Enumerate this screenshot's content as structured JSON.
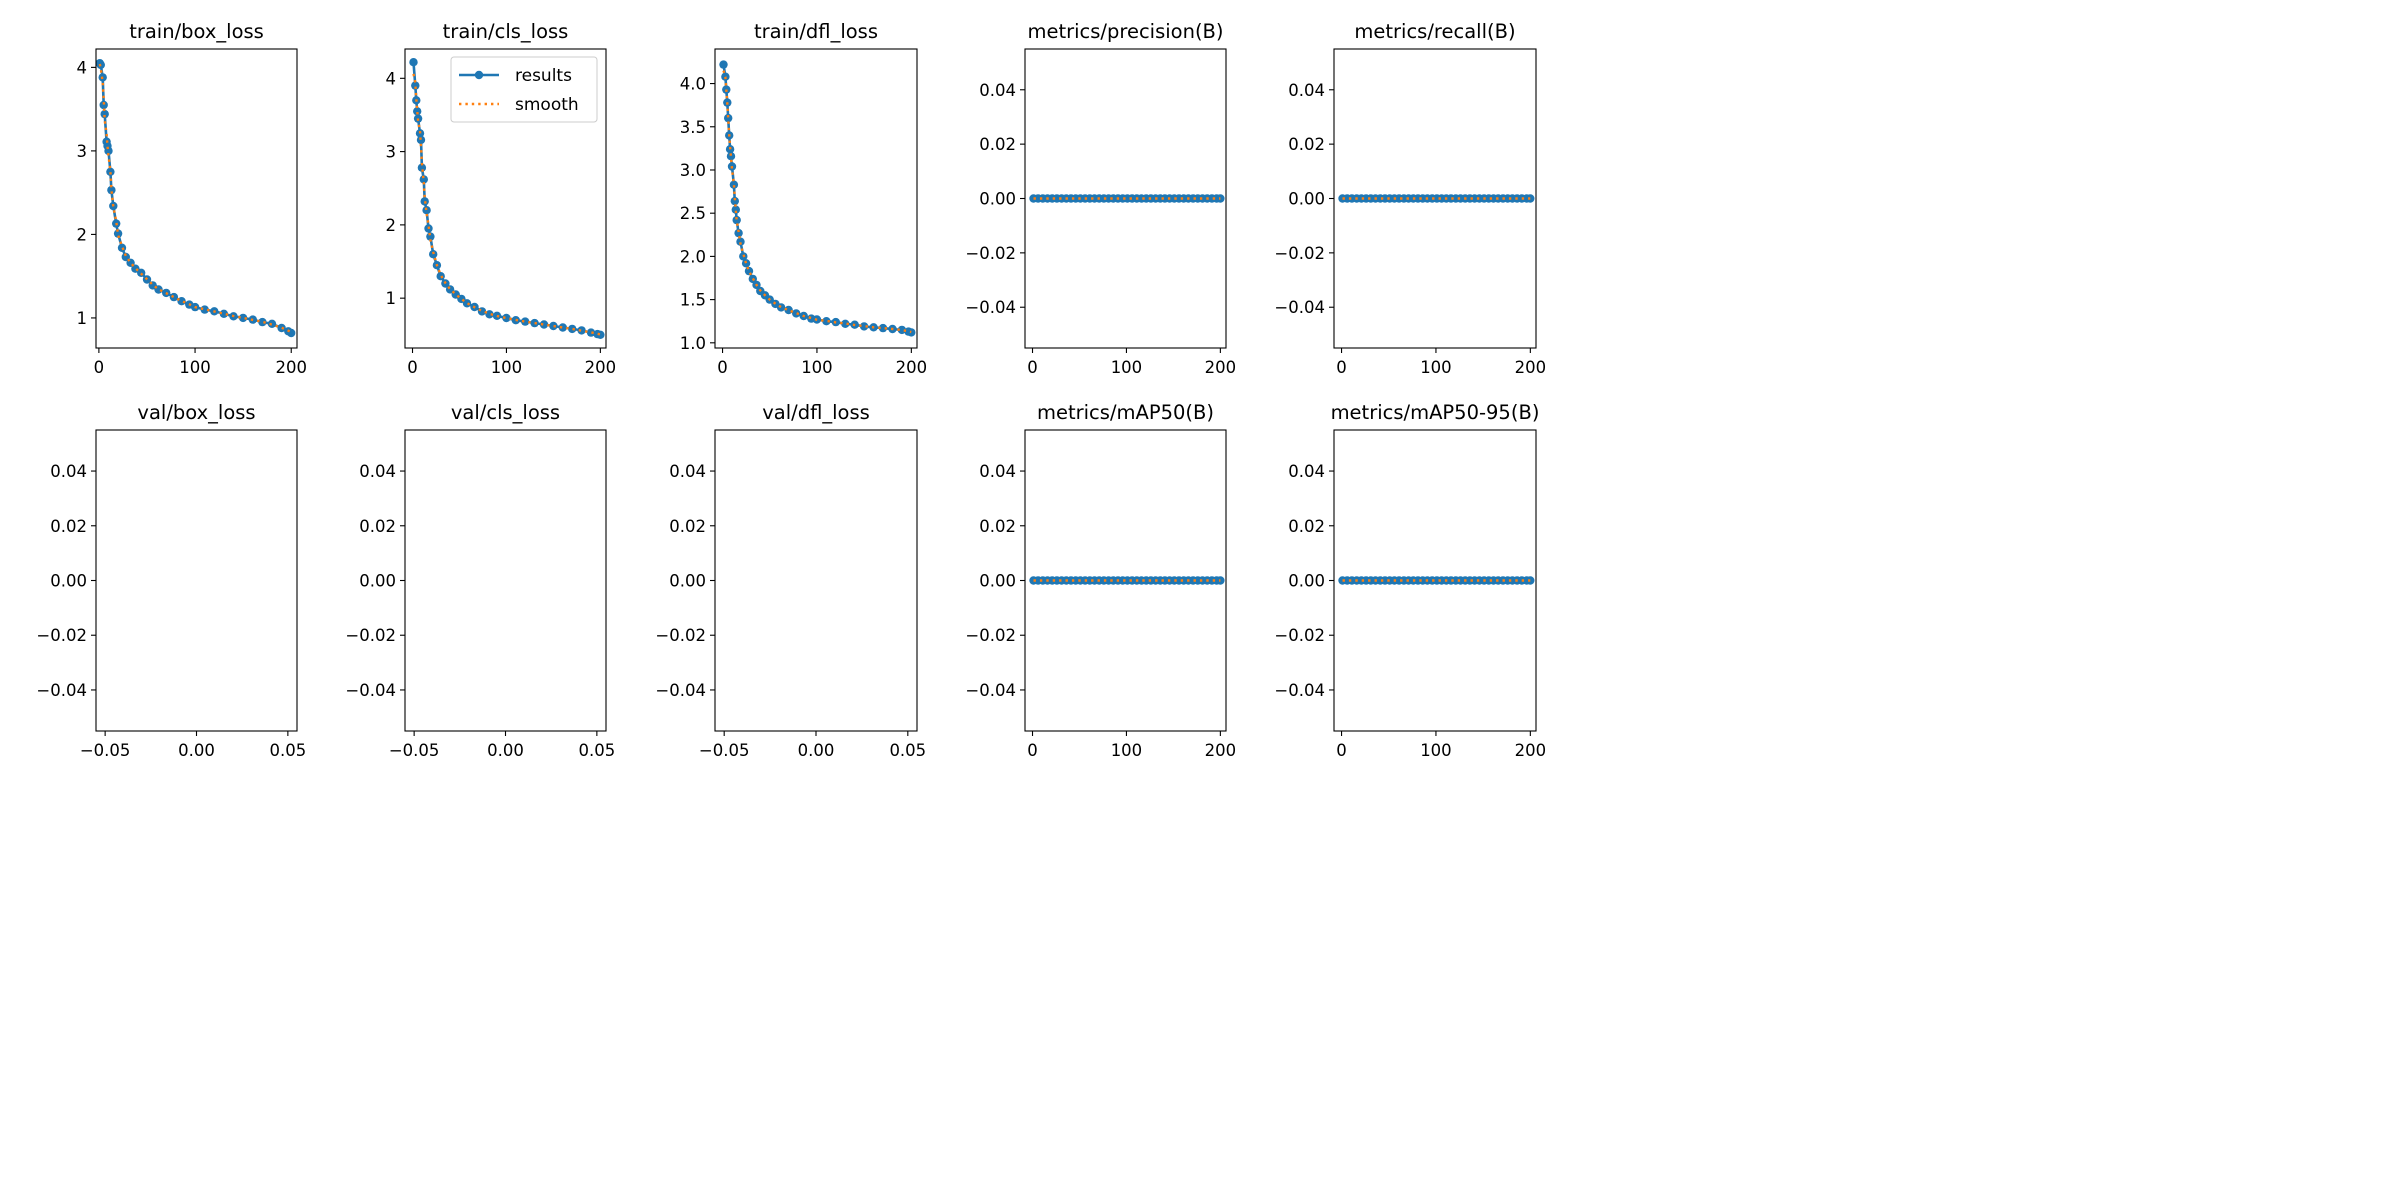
{
  "figure": {
    "legend": {
      "labels": [
        "results",
        "smooth"
      ],
      "placement": "upper right of train/cls_loss panel"
    }
  },
  "colors": {
    "series": "#1f77b4",
    "smooth": "#ff7f0e",
    "axis": "#000000",
    "background": "#ffffff"
  },
  "chart_data": [
    {
      "id": "train_box",
      "type": "line",
      "title": "train/box_loss",
      "xlim": [
        -3,
        206
      ],
      "ylim": [
        0.64,
        4.22
      ],
      "xticks": [
        {
          "v": 0,
          "label": "0"
        },
        {
          "v": 100,
          "label": "100"
        },
        {
          "v": 200,
          "label": "200"
        }
      ],
      "yticks": [
        {
          "v": 1,
          "label": "1"
        },
        {
          "v": 2,
          "label": "2"
        },
        {
          "v": 3,
          "label": "3"
        },
        {
          "v": 4,
          "label": "4"
        }
      ],
      "series": [
        {
          "name": "results",
          "x": [
            1,
            2,
            4,
            5,
            6,
            8,
            9,
            10,
            12,
            13,
            15,
            18,
            20,
            24,
            28,
            33,
            38,
            44,
            50,
            56,
            62,
            70,
            78,
            86,
            94,
            100,
            110,
            120,
            130,
            140,
            150,
            160,
            170,
            180,
            190,
            197,
            200
          ],
          "y": [
            4.05,
            4.03,
            3.88,
            3.55,
            3.44,
            3.11,
            3.06,
            3.0,
            2.75,
            2.53,
            2.34,
            2.13,
            2.01,
            1.84,
            1.73,
            1.66,
            1.59,
            1.54,
            1.46,
            1.39,
            1.34,
            1.3,
            1.25,
            1.2,
            1.16,
            1.13,
            1.1,
            1.08,
            1.05,
            1.02,
            1.0,
            0.98,
            0.95,
            0.93,
            0.88,
            0.84,
            0.82
          ]
        }
      ]
    },
    {
      "id": "train_cls",
      "type": "line",
      "title": "train/cls_loss",
      "xlim": [
        -8,
        206
      ],
      "ylim": [
        0.32,
        4.4
      ],
      "xticks": [
        {
          "v": 0,
          "label": "0"
        },
        {
          "v": 100,
          "label": "100"
        },
        {
          "v": 200,
          "label": "200"
        }
      ],
      "yticks": [
        {
          "v": 1,
          "label": "1"
        },
        {
          "v": 2,
          "label": "2"
        },
        {
          "v": 3,
          "label": "3"
        },
        {
          "v": 4,
          "label": "4"
        }
      ],
      "series": [
        {
          "name": "results",
          "x": [
            1,
            3,
            4,
            5,
            6,
            8,
            9,
            10,
            12,
            13,
            15,
            17,
            19,
            22,
            26,
            30,
            35,
            40,
            46,
            52,
            58,
            66,
            74,
            82,
            90,
            100,
            110,
            120,
            130,
            140,
            150,
            160,
            170,
            180,
            190,
            197,
            200
          ],
          "y": [
            4.22,
            3.9,
            3.7,
            3.55,
            3.45,
            3.25,
            3.16,
            2.78,
            2.62,
            2.32,
            2.2,
            1.95,
            1.84,
            1.6,
            1.45,
            1.3,
            1.2,
            1.12,
            1.05,
            0.99,
            0.93,
            0.88,
            0.82,
            0.78,
            0.76,
            0.73,
            0.7,
            0.68,
            0.66,
            0.64,
            0.62,
            0.6,
            0.58,
            0.56,
            0.53,
            0.51,
            0.5
          ]
        }
      ]
    },
    {
      "id": "train_dfl",
      "type": "line",
      "title": "train/dfl_loss",
      "xlim": [
        -8,
        206
      ],
      "ylim": [
        0.94,
        4.4
      ],
      "xticks": [
        {
          "v": 0,
          "label": "0"
        },
        {
          "v": 100,
          "label": "100"
        },
        {
          "v": 200,
          "label": "200"
        }
      ],
      "yticks": [
        {
          "v": 1.0,
          "label": "1.0"
        },
        {
          "v": 1.5,
          "label": "1.5"
        },
        {
          "v": 2.0,
          "label": "2.0"
        },
        {
          "v": 2.5,
          "label": "2.5"
        },
        {
          "v": 3.0,
          "label": "3.0"
        },
        {
          "v": 3.5,
          "label": "3.5"
        },
        {
          "v": 4.0,
          "label": "4.0"
        }
      ],
      "series": [
        {
          "name": "results",
          "x": [
            1,
            3,
            4,
            5,
            6,
            7,
            8,
            9,
            10,
            12,
            13,
            14,
            15,
            17,
            19,
            22,
            25,
            28,
            32,
            36,
            40,
            45,
            50,
            56,
            62,
            70,
            78,
            86,
            94,
            100,
            110,
            120,
            130,
            140,
            150,
            160,
            170,
            180,
            190,
            197,
            200
          ],
          "y": [
            4.22,
            4.08,
            3.93,
            3.78,
            3.6,
            3.4,
            3.24,
            3.16,
            3.04,
            2.83,
            2.64,
            2.54,
            2.42,
            2.27,
            2.17,
            2.0,
            1.92,
            1.83,
            1.74,
            1.67,
            1.6,
            1.55,
            1.5,
            1.45,
            1.41,
            1.38,
            1.34,
            1.31,
            1.28,
            1.27,
            1.25,
            1.24,
            1.22,
            1.21,
            1.19,
            1.18,
            1.17,
            1.16,
            1.15,
            1.13,
            1.12
          ]
        }
      ]
    },
    {
      "id": "precision",
      "type": "line",
      "title": "metrics/precision(B)",
      "xlim": [
        -8,
        206
      ],
      "ylim": [
        -0.055,
        0.055
      ],
      "xticks": [
        {
          "v": 0,
          "label": "0"
        },
        {
          "v": 100,
          "label": "100"
        },
        {
          "v": 200,
          "label": "200"
        }
      ],
      "yticks": [
        {
          "v": 0.04,
          "label": "0.04"
        },
        {
          "v": 0.02,
          "label": "0.02"
        },
        {
          "v": 0,
          "label": "0.00"
        },
        {
          "v": -0.02,
          "label": "−0.02"
        },
        {
          "v": -0.04,
          "label": "−0.04"
        }
      ],
      "series": [
        {
          "name": "results",
          "flat": 0,
          "x_from": 1,
          "x_to": 200
        }
      ]
    },
    {
      "id": "recall",
      "type": "line",
      "title": "metrics/recall(B)",
      "xlim": [
        -8,
        206
      ],
      "ylim": [
        -0.055,
        0.055
      ],
      "xticks": [
        {
          "v": 0,
          "label": "0"
        },
        {
          "v": 100,
          "label": "100"
        },
        {
          "v": 200,
          "label": "200"
        }
      ],
      "yticks": [
        {
          "v": 0.04,
          "label": "0.04"
        },
        {
          "v": 0.02,
          "label": "0.02"
        },
        {
          "v": 0,
          "label": "0.00"
        },
        {
          "v": -0.02,
          "label": "−0.02"
        },
        {
          "v": -0.04,
          "label": "−0.04"
        }
      ],
      "series": [
        {
          "name": "results",
          "flat": 0,
          "x_from": 1,
          "x_to": 200
        }
      ]
    },
    {
      "id": "val_box",
      "type": "line",
      "title": "val/box_loss",
      "xlim": [
        -0.055,
        0.055
      ],
      "ylim": [
        -0.055,
        0.055
      ],
      "xticks": [
        {
          "v": -0.05,
          "label": "−0.05"
        },
        {
          "v": 0,
          "label": "0.00"
        },
        {
          "v": 0.05,
          "label": "0.05"
        }
      ],
      "yticks": [
        {
          "v": 0.04,
          "label": "0.04"
        },
        {
          "v": 0.02,
          "label": "0.02"
        },
        {
          "v": 0,
          "label": "0.00"
        },
        {
          "v": -0.02,
          "label": "−0.02"
        },
        {
          "v": -0.04,
          "label": "−0.04"
        }
      ],
      "series": []
    },
    {
      "id": "val_cls",
      "type": "line",
      "title": "val/cls_loss",
      "xlim": [
        -0.055,
        0.055
      ],
      "ylim": [
        -0.055,
        0.055
      ],
      "xticks": [
        {
          "v": -0.05,
          "label": "−0.05"
        },
        {
          "v": 0,
          "label": "0.00"
        },
        {
          "v": 0.05,
          "label": "0.05"
        }
      ],
      "yticks": [
        {
          "v": 0.04,
          "label": "0.04"
        },
        {
          "v": 0.02,
          "label": "0.02"
        },
        {
          "v": 0,
          "label": "0.00"
        },
        {
          "v": -0.02,
          "label": "−0.02"
        },
        {
          "v": -0.04,
          "label": "−0.04"
        }
      ],
      "series": []
    },
    {
      "id": "val_dfl",
      "type": "line",
      "title": "val/dfl_loss",
      "xlim": [
        -0.055,
        0.055
      ],
      "ylim": [
        -0.055,
        0.055
      ],
      "xticks": [
        {
          "v": -0.05,
          "label": "−0.05"
        },
        {
          "v": 0,
          "label": "0.00"
        },
        {
          "v": 0.05,
          "label": "0.05"
        }
      ],
      "yticks": [
        {
          "v": 0.04,
          "label": "0.04"
        },
        {
          "v": 0.02,
          "label": "0.02"
        },
        {
          "v": 0,
          "label": "0.00"
        },
        {
          "v": -0.02,
          "label": "−0.02"
        },
        {
          "v": -0.04,
          "label": "−0.04"
        }
      ],
      "series": []
    },
    {
      "id": "map50",
      "type": "line",
      "title": "metrics/mAP50(B)",
      "xlim": [
        -8,
        206
      ],
      "ylim": [
        -0.055,
        0.055
      ],
      "xticks": [
        {
          "v": 0,
          "label": "0"
        },
        {
          "v": 100,
          "label": "100"
        },
        {
          "v": 200,
          "label": "200"
        }
      ],
      "yticks": [
        {
          "v": 0.04,
          "label": "0.04"
        },
        {
          "v": 0.02,
          "label": "0.02"
        },
        {
          "v": 0,
          "label": "0.00"
        },
        {
          "v": -0.02,
          "label": "−0.02"
        },
        {
          "v": -0.04,
          "label": "−0.04"
        }
      ],
      "series": [
        {
          "name": "results",
          "flat": 0,
          "x_from": 1,
          "x_to": 200
        }
      ]
    },
    {
      "id": "map50_95",
      "type": "line",
      "title": "metrics/mAP50-95(B)",
      "xlim": [
        -8,
        206
      ],
      "ylim": [
        -0.055,
        0.055
      ],
      "xticks": [
        {
          "v": 0,
          "label": "0"
        },
        {
          "v": 100,
          "label": "100"
        },
        {
          "v": 200,
          "label": "200"
        }
      ],
      "yticks": [
        {
          "v": 0.04,
          "label": "0.04"
        },
        {
          "v": 0.02,
          "label": "0.02"
        },
        {
          "v": 0,
          "label": "0.00"
        },
        {
          "v": -0.02,
          "label": "−0.02"
        },
        {
          "v": -0.04,
          "label": "−0.04"
        }
      ],
      "series": [
        {
          "name": "results",
          "flat": 0,
          "x_from": 1,
          "x_to": 200
        }
      ]
    }
  ]
}
